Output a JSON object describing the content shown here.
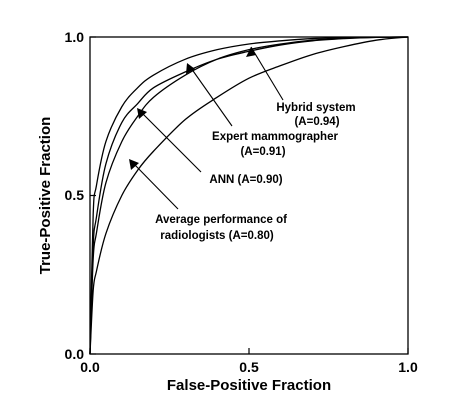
{
  "chart_data": {
    "type": "line",
    "xlabel": "False-Positive Fraction",
    "ylabel": "True-Positive Fraction",
    "xlim": [
      0,
      1
    ],
    "ylim": [
      0,
      1
    ],
    "x_ticks": [
      "0.0",
      "0.5",
      "1.0"
    ],
    "y_ticks": [
      "0.0",
      "0.5",
      "1.0"
    ],
    "grid": false,
    "legend": "none",
    "series": [
      {
        "az": 0.94,
        "x": [
          0,
          0.01,
          0.02,
          0.05,
          0.1,
          0.15,
          0.2,
          0.3,
          0.4,
          0.5,
          0.6,
          0.7,
          0.8,
          0.9,
          1.0
        ],
        "y": [
          0,
          0.44,
          0.53,
          0.67,
          0.78,
          0.84,
          0.88,
          0.93,
          0.96,
          0.978,
          0.988,
          0.995,
          0.998,
          0.999,
          1.0
        ]
      },
      {
        "az": 0.91,
        "x": [
          0,
          0.01,
          0.02,
          0.05,
          0.1,
          0.15,
          0.2,
          0.3,
          0.4,
          0.5,
          0.6,
          0.7,
          0.8,
          0.9,
          1.0
        ],
        "y": [
          0,
          0.34,
          0.43,
          0.6,
          0.73,
          0.79,
          0.84,
          0.89,
          0.93,
          0.955,
          0.975,
          0.988,
          0.995,
          0.999,
          1.0
        ]
      },
      {
        "az": 0.9,
        "x": [
          0,
          0.01,
          0.02,
          0.05,
          0.1,
          0.15,
          0.2,
          0.3,
          0.4,
          0.5,
          0.6,
          0.7,
          0.8,
          0.9,
          1.0
        ],
        "y": [
          0,
          0.3,
          0.38,
          0.54,
          0.67,
          0.75,
          0.81,
          0.88,
          0.93,
          0.96,
          0.978,
          0.99,
          0.996,
          0.999,
          1.0
        ]
      },
      {
        "az": 0.8,
        "x": [
          0,
          0.01,
          0.02,
          0.05,
          0.1,
          0.15,
          0.2,
          0.3,
          0.4,
          0.5,
          0.6,
          0.7,
          0.8,
          0.9,
          1.0
        ],
        "y": [
          0,
          0.2,
          0.26,
          0.38,
          0.5,
          0.58,
          0.64,
          0.74,
          0.81,
          0.87,
          0.91,
          0.945,
          0.97,
          0.99,
          1.0
        ]
      }
    ],
    "annotations": [
      {
        "lines": [
          "Hybrid system",
          "(A=0.94)"
        ],
        "arrow_to": [
          0.5,
          0.978
        ]
      },
      {
        "lines": [
          "Expert mammographer",
          "(A=0.91)"
        ],
        "arrow_to": [
          0.3,
          0.89
        ]
      },
      {
        "lines": [
          "ANN (A=0.90)"
        ],
        "arrow_to": [
          0.15,
          0.75
        ]
      },
      {
        "lines": [
          "Average performance of",
          "radiologists (A=0.80)"
        ],
        "arrow_to": [
          0.12,
          0.54
        ]
      }
    ]
  }
}
